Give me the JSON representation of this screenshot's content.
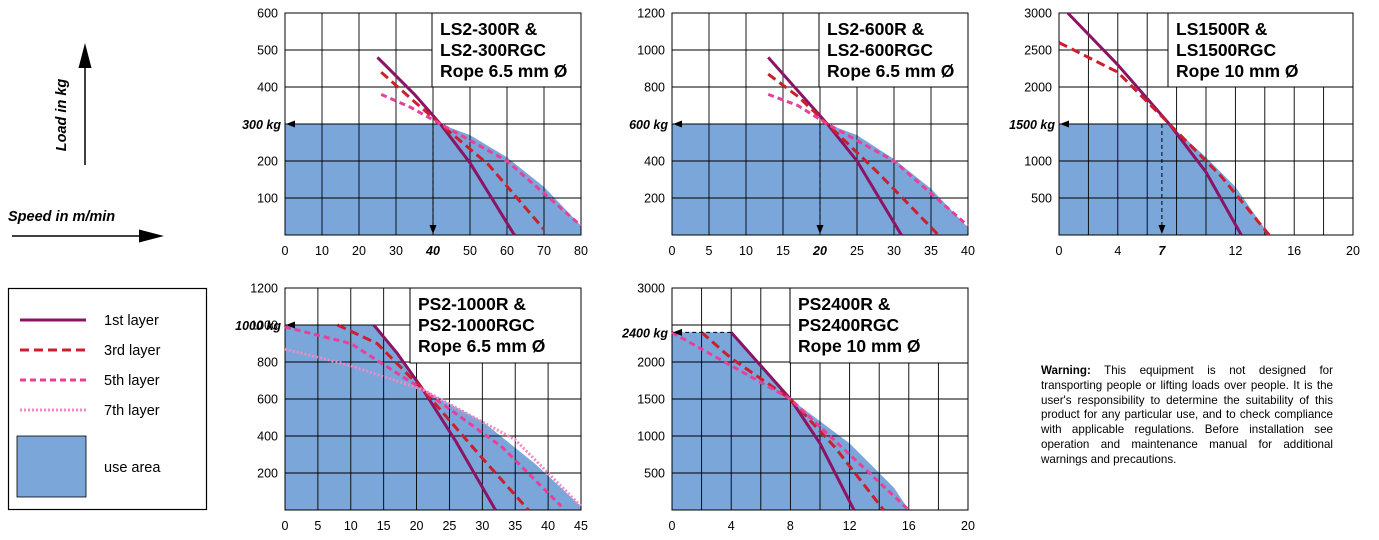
{
  "side_labels": {
    "load_axis": "Load in kg",
    "speed_axis": "Speed in m/min"
  },
  "legend": {
    "items": [
      {
        "label": "1st layer",
        "color": "#8c1464",
        "style": "solid"
      },
      {
        "label": "3rd layer",
        "color": "#cc1f2e",
        "style": "long-dash"
      },
      {
        "label": "5th layer",
        "color": "#e8409a",
        "style": "dash"
      },
      {
        "label": "7th layer",
        "color": "#f08ac4",
        "style": "dot"
      }
    ],
    "area_label": "use area",
    "area_color": "#7aa6da"
  },
  "warning": {
    "bold": "Warning:",
    "text": " This equipment is not designed for transporting people or lifting loads over people. It is the user's responsibility to determine the suitability of this product for any particular use, and to check compliance with applicable regulations. Before installation see operation and maintenance manual for additional warnings and precautions."
  },
  "chart_data": [
    {
      "type": "line",
      "title_lines": [
        "LS2-300R &",
        "LS2-300RGC",
        "Rope 6.5 mm Ø"
      ],
      "xlim": [
        0,
        80
      ],
      "ylim": [
        0,
        600
      ],
      "xticks": [
        {
          "v": 0,
          "t": "0"
        },
        {
          "v": 10,
          "t": "10"
        },
        {
          "v": 20,
          "t": "20"
        },
        {
          "v": 30,
          "t": "30"
        },
        {
          "v": 40,
          "t": "40"
        },
        {
          "v": 50,
          "t": "50"
        },
        {
          "v": 60,
          "t": "60"
        },
        {
          "v": 70,
          "t": "70"
        },
        {
          "v": 80,
          "t": "80"
        }
      ],
      "yticks": [
        {
          "v": 100,
          "t": "100"
        },
        {
          "v": 200,
          "t": "200"
        },
        {
          "v": 400,
          "t": "400"
        },
        {
          "v": 500,
          "t": "500"
        },
        {
          "v": 600,
          "t": "600"
        }
      ],
      "x_grid": [
        0,
        10,
        20,
        30,
        40,
        50,
        60,
        70,
        80
      ],
      "y_grid": [
        0,
        100,
        200,
        300,
        400,
        500,
        600
      ],
      "rated_load": {
        "value": 300,
        "label": "300 kg"
      },
      "rated_speed": {
        "value": 40,
        "label": "40"
      },
      "use_area": [
        [
          0,
          0
        ],
        [
          0,
          300
        ],
        [
          42,
          300
        ],
        [
          50,
          270
        ],
        [
          60,
          210
        ],
        [
          70,
          130
        ],
        [
          80,
          25
        ],
        [
          80,
          0
        ]
      ],
      "series": [
        {
          "layer": "1st layer",
          "points": [
            [
              25,
              480
            ],
            [
              35,
              380
            ],
            [
              42,
              300
            ],
            [
              50,
              195
            ],
            [
              62,
              0
            ]
          ]
        },
        {
          "layer": "3rd layer",
          "points": [
            [
              26,
              440
            ],
            [
              35,
              360
            ],
            [
              42,
              300
            ],
            [
              55,
              190
            ],
            [
              70,
              15
            ]
          ]
        },
        {
          "layer": "5th layer",
          "points": [
            [
              26,
              380
            ],
            [
              34,
              345
            ],
            [
              42,
              300
            ],
            [
              60,
              200
            ],
            [
              80,
              25
            ]
          ]
        }
      ]
    },
    {
      "type": "line",
      "title_lines": [
        "LS2-600R &",
        "LS2-600RGC",
        "Rope 6.5 mm Ø"
      ],
      "xlim": [
        0,
        40
      ],
      "ylim": [
        0,
        1200
      ],
      "xticks": [
        {
          "v": 0,
          "t": "0"
        },
        {
          "v": 5,
          "t": "5"
        },
        {
          "v": 10,
          "t": "10"
        },
        {
          "v": 15,
          "t": "15"
        },
        {
          "v": 20,
          "t": "20"
        },
        {
          "v": 25,
          "t": "25"
        },
        {
          "v": 30,
          "t": "30"
        },
        {
          "v": 35,
          "t": "35"
        },
        {
          "v": 40,
          "t": "40"
        }
      ],
      "yticks": [
        {
          "v": 200,
          "t": "200"
        },
        {
          "v": 400,
          "t": "400"
        },
        {
          "v": 800,
          "t": "800"
        },
        {
          "v": 1000,
          "t": "1000"
        },
        {
          "v": 1200,
          "t": "1200"
        }
      ],
      "x_grid": [
        0,
        5,
        10,
        15,
        20,
        25,
        30,
        35,
        40
      ],
      "y_grid": [
        0,
        200,
        400,
        600,
        800,
        1000,
        1200
      ],
      "rated_load": {
        "value": 600,
        "label": "600 kg"
      },
      "rated_speed": {
        "value": 20,
        "label": "20"
      },
      "use_area": [
        [
          0,
          0
        ],
        [
          0,
          600
        ],
        [
          21,
          600
        ],
        [
          25,
          540
        ],
        [
          30,
          410
        ],
        [
          35,
          250
        ],
        [
          40,
          40
        ],
        [
          40,
          0
        ]
      ],
      "series": [
        {
          "layer": "1st layer",
          "points": [
            [
              13,
              960
            ],
            [
              17,
              780
            ],
            [
              21,
              600
            ],
            [
              25,
              400
            ],
            [
              31,
              0
            ]
          ]
        },
        {
          "layer": "3rd layer",
          "points": [
            [
              13,
              870
            ],
            [
              17,
              750
            ],
            [
              21,
              600
            ],
            [
              28,
              330
            ],
            [
              36,
              0
            ]
          ]
        },
        {
          "layer": "5th layer",
          "points": [
            [
              13,
              760
            ],
            [
              17,
              700
            ],
            [
              21,
              600
            ],
            [
              30,
              400
            ],
            [
              40,
              50
            ]
          ]
        }
      ]
    },
    {
      "type": "line",
      "title_lines": [
        "LS1500R &",
        "LS1500RGC",
        "Rope 10 mm Ø"
      ],
      "xlim": [
        0,
        20
      ],
      "ylim": [
        0,
        3000
      ],
      "xticks": [
        {
          "v": 0,
          "t": "0"
        },
        {
          "v": 4,
          "t": "4"
        },
        {
          "v": 7,
          "t": "7"
        },
        {
          "v": 12,
          "t": "12"
        },
        {
          "v": 16,
          "t": "16"
        },
        {
          "v": 20,
          "t": "20"
        }
      ],
      "yticks": [
        {
          "v": 500,
          "t": "500"
        },
        {
          "v": 1000,
          "t": "1000"
        },
        {
          "v": 2000,
          "t": "2000"
        },
        {
          "v": 2500,
          "t": "2500"
        },
        {
          "v": 3000,
          "t": "3000"
        }
      ],
      "x_grid": [
        0,
        2,
        4,
        6,
        8,
        10,
        12,
        14,
        16,
        18,
        20
      ],
      "y_grid": [
        0,
        500,
        1000,
        1500,
        2000,
        2500,
        3000
      ],
      "rated_load": {
        "value": 1500,
        "label": "1500 kg"
      },
      "rated_speed": {
        "value": 7,
        "label": "7"
      },
      "use_area": [
        [
          0,
          0
        ],
        [
          0,
          1500
        ],
        [
          7.5,
          1500
        ],
        [
          10,
          1050
        ],
        [
          12,
          650
        ],
        [
          14.3,
          0
        ]
      ],
      "series": [
        {
          "layer": "1st layer",
          "points": [
            [
              0.6,
              3000
            ],
            [
              4,
              2300
            ],
            [
              7.5,
              1500
            ],
            [
              10,
              850
            ],
            [
              12.4,
              0
            ]
          ]
        },
        {
          "layer": "3rd layer",
          "points": [
            [
              0,
              2600
            ],
            [
              4,
              2200
            ],
            [
              7.5,
              1500
            ],
            [
              11,
              800
            ],
            [
              14.3,
              0
            ]
          ]
        }
      ]
    },
    {
      "type": "line",
      "title_lines": [
        "PS2-1000R &",
        "PS2-1000RGC",
        "Rope 6.5 mm Ø"
      ],
      "xlim": [
        0,
        45
      ],
      "ylim": [
        0,
        1200
      ],
      "xticks": [
        {
          "v": 0,
          "t": "0"
        },
        {
          "v": 5,
          "t": "5"
        },
        {
          "v": 10,
          "t": "10"
        },
        {
          "v": 15,
          "t": "15"
        },
        {
          "v": 20,
          "t": "20"
        },
        {
          "v": 25,
          "t": "25"
        },
        {
          "v": 30,
          "t": "30"
        },
        {
          "v": 35,
          "t": "35"
        },
        {
          "v": 40,
          "t": "40"
        },
        {
          "v": 45,
          "t": "45"
        }
      ],
      "yticks": [
        {
          "v": 200,
          "t": "200"
        },
        {
          "v": 400,
          "t": "400"
        },
        {
          "v": 600,
          "t": "600"
        },
        {
          "v": 800,
          "t": "800"
        },
        {
          "v": 1000,
          "t": "1000"
        },
        {
          "v": 1200,
          "t": "1200"
        }
      ],
      "x_grid": [
        0,
        5,
        10,
        15,
        20,
        25,
        30,
        35,
        40,
        45
      ],
      "y_grid": [
        0,
        200,
        400,
        600,
        800,
        1000,
        1200
      ],
      "rated_load": {
        "value": 1000,
        "label": "1000 kg"
      },
      "use_area": [
        [
          0,
          0
        ],
        [
          0,
          1000
        ],
        [
          13.5,
          1000
        ],
        [
          17,
          850
        ],
        [
          21,
          650
        ],
        [
          30,
          480
        ],
        [
          38,
          250
        ],
        [
          45,
          20
        ],
        [
          45,
          0
        ]
      ],
      "series": [
        {
          "layer": "1st layer",
          "points": [
            [
              13.5,
              1000
            ],
            [
              17,
              850
            ],
            [
              21,
              650
            ],
            [
              26,
              370
            ],
            [
              32,
              0
            ]
          ]
        },
        {
          "layer": "3rd layer",
          "points": [
            [
              8,
              1000
            ],
            [
              14,
              900
            ],
            [
              21,
              650
            ],
            [
              30,
              280
            ],
            [
              37,
              0
            ]
          ]
        },
        {
          "layer": "5th layer",
          "points": [
            [
              0,
              990
            ],
            [
              10,
              900
            ],
            [
              21,
              650
            ],
            [
              33,
              340
            ],
            [
              42,
              20
            ]
          ]
        },
        {
          "layer": "7th layer",
          "points": [
            [
              0,
              870
            ],
            [
              10,
              780
            ],
            [
              21,
              650
            ],
            [
              35,
              380
            ],
            [
              45,
              20
            ]
          ]
        }
      ]
    },
    {
      "type": "line",
      "title_lines": [
        "PS2400R &",
        "PS2400RGC",
        "Rope 10 mm Ø"
      ],
      "xlim": [
        0,
        20
      ],
      "ylim": [
        0,
        3000
      ],
      "xticks": [
        {
          "v": 0,
          "t": "0"
        },
        {
          "v": 4,
          "t": "4"
        },
        {
          "v": 8,
          "t": "8"
        },
        {
          "v": 12,
          "t": "12"
        },
        {
          "v": 16,
          "t": "16"
        },
        {
          "v": 20,
          "t": "20"
        }
      ],
      "yticks": [
        {
          "v": 500,
          "t": "500"
        },
        {
          "v": 1000,
          "t": "1000"
        },
        {
          "v": 1500,
          "t": "1500"
        },
        {
          "v": 2000,
          "t": "2000"
        },
        {
          "v": 3000,
          "t": "3000"
        }
      ],
      "x_grid": [
        0,
        2,
        4,
        6,
        8,
        10,
        12,
        14,
        16,
        18,
        20
      ],
      "y_grid": [
        0,
        500,
        1000,
        1500,
        2000,
        2500,
        3000
      ],
      "rated_load": {
        "value": 2400,
        "label": "2400 kg"
      },
      "use_area": [
        [
          0,
          0
        ],
        [
          0,
          2400
        ],
        [
          4,
          2400
        ],
        [
          6,
          1950
        ],
        [
          8,
          1500
        ],
        [
          12,
          900
        ],
        [
          15,
          300
        ],
        [
          16,
          0
        ]
      ],
      "series": [
        {
          "layer": "1st layer",
          "points": [
            [
              4,
              2400
            ],
            [
              6,
              1950
            ],
            [
              8,
              1500
            ],
            [
              10,
              900
            ],
            [
              12.3,
              0
            ]
          ]
        },
        {
          "layer": "3rd layer",
          "points": [
            [
              2,
              2400
            ],
            [
              4,
              2050
            ],
            [
              8,
              1500
            ],
            [
              11,
              850
            ],
            [
              14.3,
              0
            ]
          ]
        },
        {
          "layer": "5th layer",
          "points": [
            [
              0,
              2400
            ],
            [
              4,
              1950
            ],
            [
              8,
              1500
            ],
            [
              12,
              750
            ],
            [
              16,
              0
            ]
          ]
        }
      ]
    }
  ]
}
